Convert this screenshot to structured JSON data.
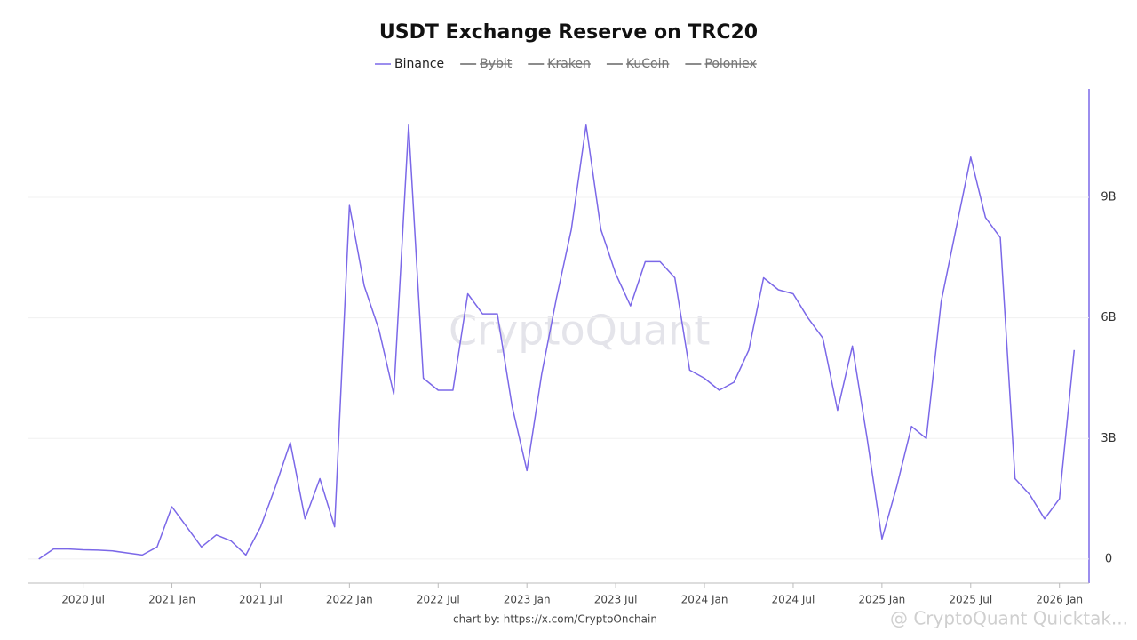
{
  "chart_data": {
    "type": "line",
    "title": "USDT Exchange Reserve on TRC20",
    "x": [
      "2020-04",
      "2020-05",
      "2020-06",
      "2020-07",
      "2020-08",
      "2020-09",
      "2020-10",
      "2020-11",
      "2020-12",
      "2021-01",
      "2021-02",
      "2021-03",
      "2021-04",
      "2021-05",
      "2021-06",
      "2021-07",
      "2021-08",
      "2021-09",
      "2021-10",
      "2021-11",
      "2021-12",
      "2022-01",
      "2022-02",
      "2022-03",
      "2022-04",
      "2022-05",
      "2022-06",
      "2022-07",
      "2022-08",
      "2022-09",
      "2022-10",
      "2022-11",
      "2022-12",
      "2023-01",
      "2023-02",
      "2023-03",
      "2023-04",
      "2023-05",
      "2023-06",
      "2023-07",
      "2023-08",
      "2023-09",
      "2023-10",
      "2023-11",
      "2023-12",
      "2024-01",
      "2024-02",
      "2024-03",
      "2024-04",
      "2024-05",
      "2024-06",
      "2024-07",
      "2024-08",
      "2024-09",
      "2024-10",
      "2024-11",
      "2024-12",
      "2025-01",
      "2025-02",
      "2025-03",
      "2025-04",
      "2025-05",
      "2025-06",
      "2025-07",
      "2025-08",
      "2025-09",
      "2025-10",
      "2025-11",
      "2025-12",
      "2026-01",
      "2026-02"
    ],
    "series": [
      {
        "name": "Binance",
        "color": "#7b68e8",
        "values": [
          0,
          0.25,
          0.25,
          0.23,
          0.22,
          0.2,
          0.15,
          0.1,
          0.3,
          1.3,
          0.8,
          0.3,
          0.6,
          0.45,
          0.1,
          0.8,
          1.8,
          2.9,
          1.0,
          2.0,
          0.8,
          8.8,
          6.8,
          5.7,
          4.1,
          10.8,
          4.5,
          4.2,
          4.2,
          6.6,
          6.1,
          6.1,
          3.8,
          2.2,
          4.6,
          6.5,
          8.2,
          10.8,
          8.2,
          7.1,
          6.3,
          7.4,
          7.4,
          7.0,
          4.7,
          4.5,
          4.2,
          4.4,
          5.2,
          7.0,
          6.7,
          6.6,
          6.0,
          5.5,
          3.7,
          5.3,
          3.0,
          0.5,
          1.8,
          3.3,
          3.0,
          6.4,
          8.2,
          10.0,
          8.5,
          8.0,
          2.0,
          1.6,
          1.0,
          1.5,
          5.2
        ]
      }
    ],
    "hidden_series": [
      "Bybit",
      "Kraken",
      "KuCoin",
      "Poloniex"
    ],
    "hidden_color": "#666666",
    "xlim": [
      "2020-03",
      "2026-03"
    ],
    "xticks": [
      {
        "value": "2020-07",
        "label": "2020 Jul"
      },
      {
        "value": "2021-01",
        "label": "2021 Jan"
      },
      {
        "value": "2021-07",
        "label": "2021 Jul"
      },
      {
        "value": "2022-01",
        "label": "2022 Jan"
      },
      {
        "value": "2022-07",
        "label": "2022 Jul"
      },
      {
        "value": "2023-01",
        "label": "2023 Jan"
      },
      {
        "value": "2023-07",
        "label": "2023 Jul"
      },
      {
        "value": "2024-01",
        "label": "2024 Jan"
      },
      {
        "value": "2024-07",
        "label": "2024 Jul"
      },
      {
        "value": "2025-01",
        "label": "2025 Jan"
      },
      {
        "value": "2025-07",
        "label": "2025 Jul"
      },
      {
        "value": "2026-01",
        "label": "2026 Jan"
      }
    ],
    "ylim": [
      -0.6,
      11.7
    ],
    "yticks": [
      0,
      {
        "value": 3,
        "label": "3B"
      },
      {
        "value": 6,
        "label": "6B"
      },
      {
        "value": 9,
        "label": "9B"
      }
    ],
    "grid": true,
    "credit": "chart by: https://x.com/CryptoOnchain",
    "watermark": "CryptoQuant",
    "corner_watermark": "@ CryptoQuant Quicktak..."
  }
}
